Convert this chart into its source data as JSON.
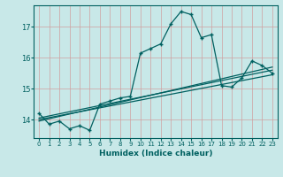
{
  "title": "",
  "xlabel": "Humidex (Indice chaleur)",
  "ylabel": "",
  "background_color": "#c8e8e8",
  "grid_color": "#b0d8d8",
  "line_color": "#006060",
  "x_data": [
    0,
    1,
    2,
    3,
    4,
    5,
    6,
    7,
    8,
    9,
    10,
    11,
    12,
    13,
    14,
    15,
    16,
    17,
    18,
    19,
    20,
    21,
    22,
    23
  ],
  "y_main": [
    14.2,
    13.85,
    13.95,
    13.7,
    13.8,
    13.65,
    14.5,
    14.6,
    14.7,
    14.75,
    16.15,
    16.3,
    16.45,
    17.1,
    17.5,
    17.4,
    16.65,
    16.75,
    15.1,
    15.05,
    15.35,
    15.9,
    15.75,
    15.5
  ],
  "ylim": [
    13.4,
    17.7
  ],
  "xlim": [
    -0.5,
    23.5
  ],
  "yticks": [
    14,
    15,
    16,
    17
  ],
  "xticks": [
    0,
    1,
    2,
    3,
    4,
    5,
    6,
    7,
    8,
    9,
    10,
    11,
    12,
    13,
    14,
    15,
    16,
    17,
    18,
    19,
    20,
    21,
    22,
    23
  ],
  "trend1_x": [
    0,
    23
  ],
  "trend1_y": [
    14.0,
    15.45
  ],
  "trend2_x": [
    0,
    23
  ],
  "trend2_y": [
    14.05,
    15.6
  ],
  "trend3_x": [
    0,
    23
  ],
  "trend3_y": [
    13.95,
    15.7
  ]
}
